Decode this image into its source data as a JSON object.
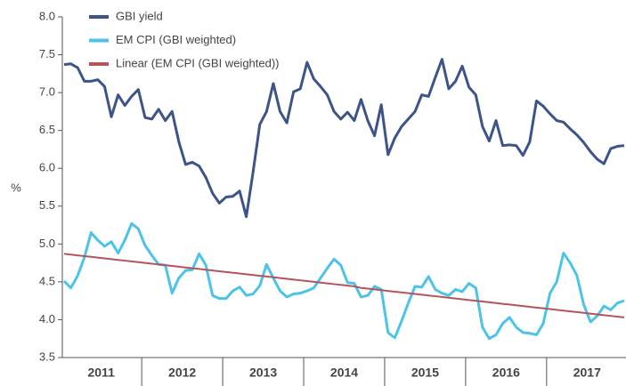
{
  "chart_data": {
    "type": "line",
    "y_label": "%",
    "categories": [
      null,
      null,
      null,
      null,
      null,
      "2011",
      null,
      null,
      null,
      null,
      null,
      null,
      null,
      null,
      null,
      null,
      null,
      "2012",
      null,
      null,
      null,
      null,
      null,
      null,
      null,
      null,
      null,
      null,
      null,
      "2013",
      null,
      null,
      null,
      null,
      null,
      null,
      null,
      null,
      null,
      null,
      null,
      "2014",
      null,
      null,
      null,
      null,
      null,
      null,
      null,
      null,
      null,
      null,
      null,
      "2015",
      null,
      null,
      null,
      null,
      null,
      null,
      null,
      null,
      null,
      null,
      null,
      "2016",
      null,
      null,
      null,
      null,
      null,
      null,
      null,
      null,
      null,
      null,
      null,
      "2017",
      null,
      null,
      null,
      null,
      null,
      null
    ],
    "series": [
      {
        "name": "GBI yield",
        "color": "#3d5488",
        "values": [
          7.37,
          7.38,
          7.33,
          7.15,
          7.15,
          7.17,
          7.08,
          6.68,
          6.97,
          6.83,
          6.95,
          7.04,
          6.67,
          6.65,
          6.78,
          6.63,
          6.75,
          6.35,
          6.05,
          6.08,
          6.03,
          5.88,
          5.67,
          5.54,
          5.62,
          5.63,
          5.7,
          5.36,
          5.95,
          6.58,
          6.75,
          7.12,
          6.75,
          6.6,
          7.01,
          7.05,
          7.4,
          7.18,
          7.08,
          6.97,
          6.75,
          6.65,
          6.74,
          6.63,
          6.91,
          6.63,
          6.43,
          6.84,
          6.18,
          6.4,
          6.55,
          6.65,
          6.75,
          6.97,
          6.95,
          7.2,
          7.44,
          7.05,
          7.15,
          7.35,
          7.07,
          6.97,
          6.55,
          6.36,
          6.63,
          6.3,
          6.31,
          6.3,
          6.17,
          6.35,
          6.89,
          6.82,
          6.72,
          6.63,
          6.61,
          6.52,
          6.44,
          6.34,
          6.22,
          6.12,
          6.06,
          6.26,
          6.29,
          6.3
        ]
      },
      {
        "name": "EM CPI (GBI weighted)",
        "color": "#4dc3e8",
        "values": [
          4.51,
          4.42,
          4.58,
          4.82,
          5.15,
          5.05,
          4.97,
          5.03,
          4.88,
          5.05,
          5.27,
          5.2,
          4.98,
          4.85,
          4.73,
          4.72,
          4.35,
          4.55,
          4.65,
          4.66,
          4.87,
          4.72,
          4.32,
          4.28,
          4.28,
          4.38,
          4.43,
          4.32,
          4.34,
          4.45,
          4.73,
          4.55,
          4.38,
          4.3,
          4.34,
          4.35,
          4.38,
          4.42,
          4.55,
          4.68,
          4.8,
          4.72,
          4.49,
          4.48,
          4.3,
          4.32,
          4.44,
          4.4,
          3.83,
          3.76,
          3.98,
          4.22,
          4.44,
          4.43,
          4.57,
          4.4,
          4.35,
          4.32,
          4.4,
          4.37,
          4.48,
          4.42,
          3.9,
          3.75,
          3.8,
          3.95,
          4.03,
          3.9,
          3.83,
          3.82,
          3.8,
          3.95,
          4.35,
          4.5,
          4.88,
          4.75,
          4.58,
          4.2,
          3.97,
          4.05,
          4.18,
          4.13,
          4.22,
          4.25
        ]
      },
      {
        "name": "Linear (EM CPI (GBI weighted))",
        "color": "#b5555a",
        "values": [
          4.87,
          4.86,
          4.85,
          4.84,
          4.83,
          4.82,
          4.81,
          4.8,
          4.79,
          4.78,
          4.77,
          4.76,
          4.75,
          4.74,
          4.73,
          4.72,
          4.71,
          4.7,
          4.69,
          4.68,
          4.67,
          4.66,
          4.65,
          4.64,
          4.63,
          4.62,
          4.61,
          4.6,
          4.59,
          4.58,
          4.57,
          4.56,
          4.55,
          4.54,
          4.53,
          4.52,
          4.51,
          4.5,
          4.49,
          4.48,
          4.47,
          4.46,
          4.45,
          4.44,
          4.42,
          4.41,
          4.4,
          4.39,
          4.38,
          4.37,
          4.36,
          4.35,
          4.34,
          4.33,
          4.32,
          4.31,
          4.3,
          4.29,
          4.28,
          4.27,
          4.26,
          4.25,
          4.24,
          4.23,
          4.22,
          4.21,
          4.2,
          4.19,
          4.18,
          4.17,
          4.16,
          4.15,
          4.14,
          4.13,
          4.12,
          4.11,
          4.1,
          4.09,
          4.08,
          4.07,
          4.06,
          4.05,
          4.04,
          4.03
        ]
      }
    ],
    "ylim": [
      3.5,
      8
    ],
    "yticks": [
      {
        "value": 3.5,
        "label": "3.5"
      },
      {
        "value": 4,
        "label": "4.0"
      },
      4.5,
      {
        "value": 5,
        "label": "5.0"
      },
      5.5,
      {
        "value": 6,
        "label": "6.0"
      },
      6.5,
      {
        "value": 7,
        "label": "7.0"
      },
      7.5,
      {
        "value": 8,
        "label": "8.0"
      }
    ],
    "grid": false,
    "legend": "top-left"
  }
}
